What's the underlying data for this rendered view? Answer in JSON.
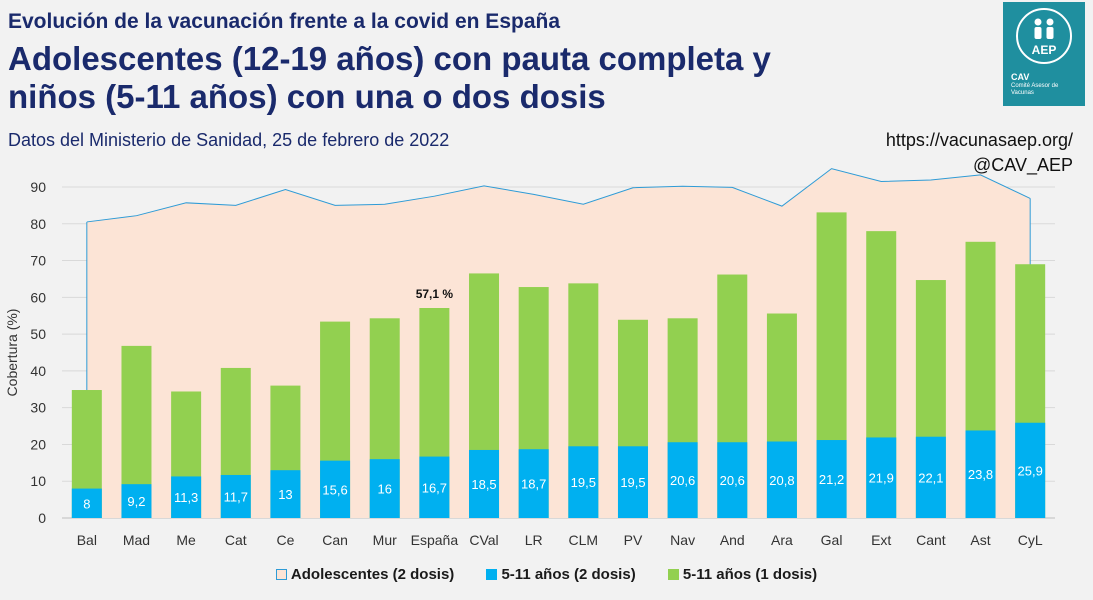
{
  "header": {
    "kicker": "Evolución de la vacunación frente a la covid en España",
    "title_line1": "Adolescentes (12-19 años) con pauta completa y",
    "title_line2": "niños (5-11 años) con una o dos dosis",
    "subtitle": "Datos del Ministerio de Sanidad, 25 de febrero de 2022",
    "source_url": "https://vacunasaep.org/",
    "source_handle": "@CAV_AEP"
  },
  "logo": {
    "seal_text": "AEP",
    "band_text": "CAV",
    "small_text": "Comité Asesor de Vacunas"
  },
  "chart_data": {
    "type": "bar",
    "title": "Adolescentes (12-19 años) con pauta completa y niños (5-11 años) con una o dos dosis",
    "xlabel": "",
    "ylabel": "Cobertura (%)",
    "ylim": [
      0,
      90
    ],
    "yticks": [
      0,
      10,
      20,
      30,
      40,
      50,
      60,
      70,
      80,
      90
    ],
    "categories": [
      "Bal",
      "Mad",
      "Me",
      "Cat",
      "Ce",
      "Can",
      "Mur",
      "España",
      "CVal",
      "LR",
      "CLM",
      "PV",
      "Nav",
      "And",
      "Ara",
      "Gal",
      "Ext",
      "Cant",
      "Ast",
      "CyL"
    ],
    "series": [
      {
        "name": "Adolescentes (2 dosis)",
        "kind": "area",
        "color": "#fce4d6",
        "line_color": "#2e9bd6",
        "values": [
          80.5,
          82.2,
          85.7,
          85.0,
          89.3,
          85.0,
          85.3,
          87.5,
          90.3,
          88.0,
          85.3,
          89.8,
          90.2,
          89.9,
          84.8,
          95.0,
          91.5,
          91.9,
          93.3,
          86.9
        ]
      },
      {
        "name": "5-11 años (2 dosis)",
        "kind": "bar",
        "color": "#00b0f0",
        "values": [
          8,
          9.2,
          11.3,
          11.7,
          13,
          15.6,
          16,
          16.7,
          18.5,
          18.7,
          19.5,
          19.5,
          20.6,
          20.6,
          20.8,
          21.2,
          21.9,
          22.1,
          23.8,
          25.9
        ],
        "labels": [
          "8",
          "9,2",
          "11,3",
          "11,7",
          "13",
          "15,6",
          "16",
          "16,7",
          "18,5",
          "18,7",
          "19,5",
          "19,5",
          "20,6",
          "20,6",
          "20,8",
          "21,2",
          "21,9",
          "22,1",
          "23,8",
          "25,9"
        ]
      },
      {
        "name": "5-11 años (1 dosis)",
        "kind": "bar",
        "color": "#92d050",
        "values": [
          34.8,
          46.8,
          34.4,
          40.8,
          36.0,
          53.4,
          54.3,
          57.1,
          66.5,
          62.8,
          63.8,
          53.9,
          54.3,
          66.2,
          55.6,
          83.1,
          78.0,
          64.7,
          75.1,
          69.0
        ]
      }
    ],
    "annotations": [
      {
        "category": "España",
        "text": "57,1 %"
      }
    ],
    "legend": [
      "Adolescentes (2 dosis)",
      "5-11 años (2 dosis)",
      "5-11 años (1 dosis)"
    ]
  }
}
